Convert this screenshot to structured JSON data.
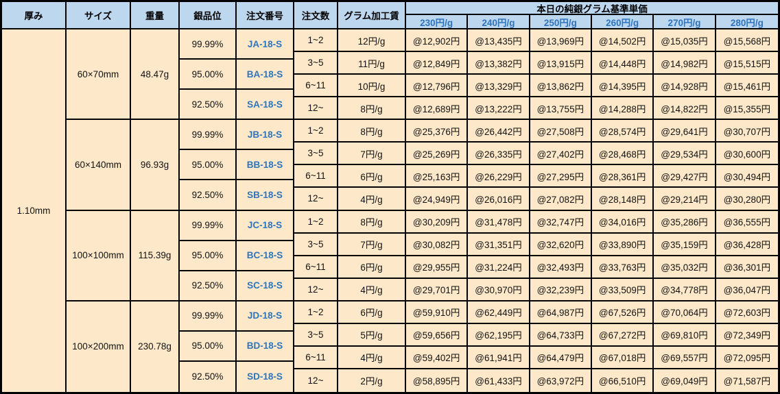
{
  "chart_data": {
    "type": "table",
    "title": "本日の純銀グラム基準単価",
    "headers": {
      "thickness": "厚み",
      "size": "サイズ",
      "weight": "重量",
      "purity": "銀品位",
      "order_no": "注文番号",
      "order_qty": "注文数",
      "gram_fee": "グラム加工賃",
      "price_group": "本日の純銀グラム基準単価",
      "price_cols": [
        "230円/g",
        "240円/g",
        "250円/g",
        "260円/g",
        "270円/g",
        "280円/g"
      ]
    },
    "thickness": "1.10mm",
    "groups": [
      {
        "size": "60×70mm",
        "weight": "48.47g",
        "purities": [
          {
            "purity": "99.99%",
            "order_no": "JA-18-S"
          },
          {
            "purity": "95.00%",
            "order_no": "BA-18-S"
          },
          {
            "purity": "92.50%",
            "order_no": "SA-18-S"
          }
        ],
        "rows": [
          {
            "qty": "1~2",
            "fee": "12円/g",
            "prices": [
              "@12,902円",
              "@13,435円",
              "@13,969円",
              "@14,502円",
              "@15,035円",
              "@15,568円"
            ]
          },
          {
            "qty": "3~5",
            "fee": "11円/g",
            "prices": [
              "@12,849円",
              "@13,382円",
              "@13,915円",
              "@14,448円",
              "@14,982円",
              "@15,515円"
            ]
          },
          {
            "qty": "6~11",
            "fee": "10円/g",
            "prices": [
              "@12,796円",
              "@13,329円",
              "@13,862円",
              "@14,395円",
              "@14,928円",
              "@15,461円"
            ]
          },
          {
            "qty": "12~",
            "fee": "8円/g",
            "prices": [
              "@12,689円",
              "@13,222円",
              "@13,755円",
              "@14,288円",
              "@14,822円",
              "@15,355円"
            ]
          }
        ]
      },
      {
        "size": "60×140mm",
        "weight": "96.93g",
        "purities": [
          {
            "purity": "99.99%",
            "order_no": "JB-18-S"
          },
          {
            "purity": "95.00%",
            "order_no": "BB-18-S"
          },
          {
            "purity": "92.50%",
            "order_no": "SB-18-S"
          }
        ],
        "rows": [
          {
            "qty": "1~2",
            "fee": "8円/g",
            "prices": [
              "@25,376円",
              "@26,442円",
              "@27,508円",
              "@28,574円",
              "@29,641円",
              "@30,707円"
            ]
          },
          {
            "qty": "3~5",
            "fee": "7円/g",
            "prices": [
              "@25,269円",
              "@26,335円",
              "@27,402円",
              "@28,468円",
              "@29,534円",
              "@30,600円"
            ]
          },
          {
            "qty": "6~11",
            "fee": "6円/g",
            "prices": [
              "@25,163円",
              "@26,229円",
              "@27,295円",
              "@28,361円",
              "@29,427円",
              "@30,494円"
            ]
          },
          {
            "qty": "12~",
            "fee": "4円/g",
            "prices": [
              "@24,949円",
              "@26,016円",
              "@27,082円",
              "@28,148円",
              "@29,214円",
              "@30,280円"
            ]
          }
        ]
      },
      {
        "size": "100×100mm",
        "weight": "115.39g",
        "purities": [
          {
            "purity": "99.99%",
            "order_no": "JC-18-S"
          },
          {
            "purity": "95.00%",
            "order_no": "BC-18-S"
          },
          {
            "purity": "92.50%",
            "order_no": "SC-18-S"
          }
        ],
        "rows": [
          {
            "qty": "1~2",
            "fee": "8円/g",
            "prices": [
              "@30,209円",
              "@31,478円",
              "@32,747円",
              "@34,016円",
              "@35,286円",
              "@36,555円"
            ]
          },
          {
            "qty": "3~5",
            "fee": "7円/g",
            "prices": [
              "@30,082円",
              "@31,351円",
              "@32,620円",
              "@33,890円",
              "@35,159円",
              "@36,428円"
            ]
          },
          {
            "qty": "6~11",
            "fee": "6円/g",
            "prices": [
              "@29,955円",
              "@31,224円",
              "@32,493円",
              "@33,763円",
              "@35,032円",
              "@36,301円"
            ]
          },
          {
            "qty": "12~",
            "fee": "4円/g",
            "prices": [
              "@29,701円",
              "@30,970円",
              "@32,239円",
              "@33,509円",
              "@34,778円",
              "@36,047円"
            ]
          }
        ]
      },
      {
        "size": "100×200mm",
        "weight": "230.78g",
        "purities": [
          {
            "purity": "99.99%",
            "order_no": "JD-18-S"
          },
          {
            "purity": "95.00%",
            "order_no": "BD-18-S"
          },
          {
            "purity": "92.50%",
            "order_no": "SD-18-S"
          }
        ],
        "rows": [
          {
            "qty": "1~2",
            "fee": "6円/g",
            "prices": [
              "@59,910円",
              "@62,449円",
              "@64,987円",
              "@67,526円",
              "@70,064円",
              "@72,603円"
            ]
          },
          {
            "qty": "3~5",
            "fee": "5円/g",
            "prices": [
              "@59,656円",
              "@62,195円",
              "@64,733円",
              "@67,272円",
              "@69,810円",
              "@72,349円"
            ]
          },
          {
            "qty": "6~11",
            "fee": "4円/g",
            "prices": [
              "@59,402円",
              "@61,941円",
              "@64,479円",
              "@67,018円",
              "@69,557円",
              "@72,095円"
            ]
          },
          {
            "qty": "12~",
            "fee": "2円/g",
            "prices": [
              "@58,895円",
              "@61,433円",
              "@63,972円",
              "@66,510円",
              "@69,049円",
              "@71,587円"
            ]
          }
        ]
      }
    ],
    "colors": {
      "header_bg": "#BDD7EE",
      "cell_bg": "#FDE9C9",
      "accent_blue": "#2E74BD",
      "border": "#000000"
    }
  }
}
